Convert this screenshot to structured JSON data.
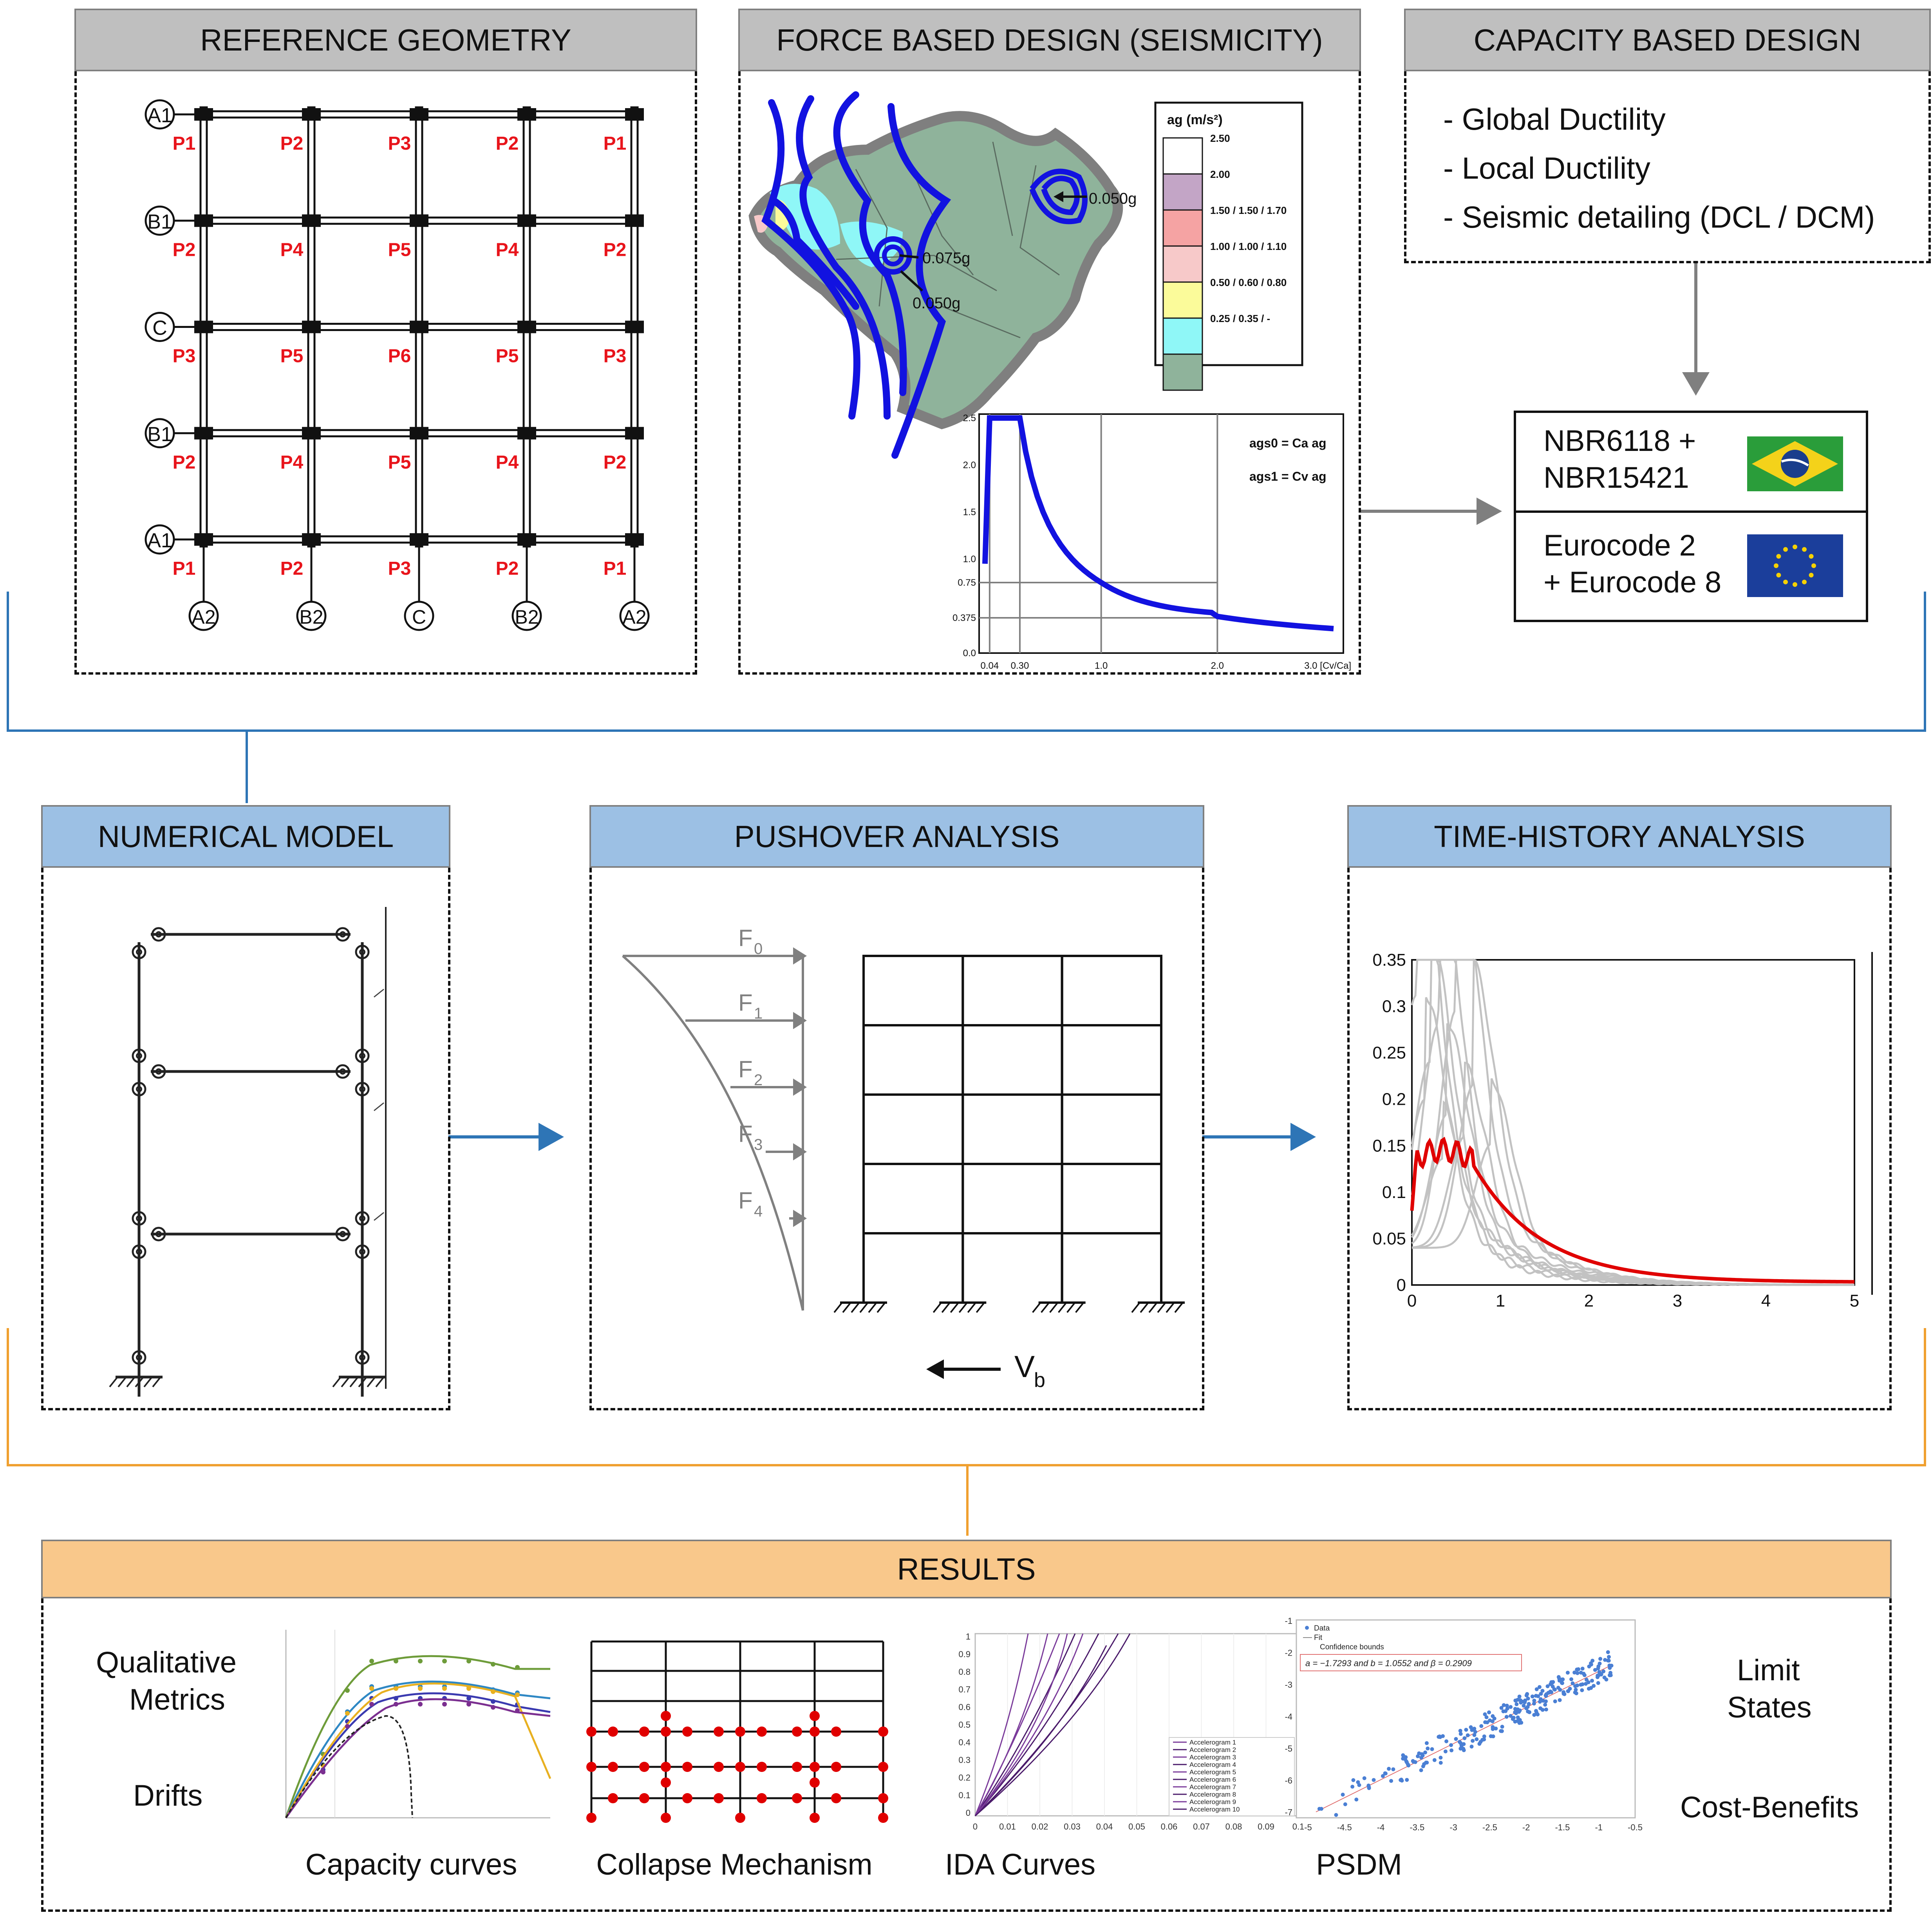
{
  "panels": {
    "reference_geometry": "REFERENCE GEOMETRY",
    "force_based": "FORCE BASED DESIGN (SEISMICITY)",
    "capacity_based": "CAPACITY BASED DESIGN",
    "numerical_model": "NUMERICAL MODEL",
    "pushover": "PUSHOVER ANALYSIS",
    "time_history": "TIME-HISTORY ANALYSIS",
    "results": "RESULTS"
  },
  "geometry": {
    "row_labels": [
      "A1",
      "B1",
      "C",
      "B1",
      "A1"
    ],
    "col_labels": [
      "A2",
      "B2",
      "C",
      "B2",
      "A2"
    ],
    "pillars": [
      [
        "P1",
        "P2",
        "P3",
        "P2",
        "P1"
      ],
      [
        "P2",
        "P4",
        "P5",
        "P4",
        "P2"
      ],
      [
        "P3",
        "P5",
        "P6",
        "P5",
        "P3"
      ],
      [
        "P2",
        "P4",
        "P5",
        "P4",
        "P2"
      ],
      [
        "P1",
        "P2",
        "P3",
        "P2",
        "P1"
      ]
    ]
  },
  "seismicity": {
    "legend_title": "ag (m/s²)",
    "legend_items": [
      {
        "label": "2.50",
        "color": "#ffffff"
      },
      {
        "label": "2.00",
        "color": "#c3a5c6"
      },
      {
        "label": "1.50 / 1.50 / 1.70",
        "color": "#f5a3a3"
      },
      {
        "label": "1.00 / 1.00 / 1.10",
        "color": "#f7c9c9"
      },
      {
        "label": "0.50 / 0.60 / 0.80",
        "color": "#fbfb9a"
      },
      {
        "label": "0.25 / 0.35 /  -",
        "color": "#8ff7f7"
      },
      {
        "label": "",
        "color": "#8fb39b"
      }
    ],
    "map_labels": [
      "0.050g",
      "0.075g",
      "0.050g"
    ],
    "spectrum": {
      "eq1": "ags0 = Ca ag",
      "eq2": "ags1 = Cv ag",
      "y_ticks": [
        "2.5",
        "2.0",
        "1.5",
        "1.0",
        "0.75",
        "0.375",
        "0.0"
      ],
      "x_ticks": [
        "0.04",
        "0.30",
        "1.0",
        "2.0",
        "3.0 [Cv/Ca]"
      ]
    }
  },
  "capacity_design": {
    "items": [
      "Global Ductility",
      "Local Ductility",
      "Seismic detailing (DCL / DCM)"
    ]
  },
  "codes": {
    "brazil": [
      "NBR6118 +",
      "NBR15421"
    ],
    "europe": [
      "Eurocode 2",
      "+ Eurocode 8"
    ]
  },
  "pushover": {
    "forces": [
      "F0",
      "F1",
      "F2",
      "F3",
      "F4"
    ],
    "base_shear": "Vb"
  },
  "time_history": {
    "y_ticks": [
      "0.35",
      "0.3",
      "0.25",
      "0.2",
      "0.15",
      "0.1",
      "0.05",
      "0"
    ],
    "x_ticks": [
      "0",
      "1",
      "2",
      "3",
      "4",
      "5"
    ]
  },
  "results": {
    "left_labels": [
      "Qualitative",
      "Metrics",
      "Drifts"
    ],
    "right_labels": [
      "Limit",
      "States",
      "Cost-Benefits"
    ],
    "captions": [
      "Capacity curves",
      "Collapse Mechanism",
      "IDA Curves",
      "PSDM"
    ],
    "ida_legend": [
      "Accelerogram 1",
      "Accelerogram 2",
      "Accelerogram 3",
      "Accelerogram 4",
      "Accelerogram 5",
      "Accelerogram 6",
      "Accelerogram 7",
      "Accelerogram 8",
      "Accelerogram 9",
      "Accelerogram 10"
    ],
    "ida_y_ticks": [
      "1",
      "0.9",
      "0.8",
      "0.7",
      "0.6",
      "0.5",
      "0.4",
      "0.3",
      "0.2",
      "0.1",
      "0"
    ],
    "ida_x_ticks": [
      "0",
      "0.01",
      "0.02",
      "0.03",
      "0.04",
      "0.05",
      "0.06",
      "0.07",
      "0.08",
      "0.09",
      "0.1"
    ],
    "psdm_legend": [
      "Data",
      "Fit",
      "Confidence bounds"
    ],
    "psdm_eq": "a = −1.7293 and b = 1.0552 and β = 0.2909",
    "psdm_y_ticks": [
      "-1",
      "-2",
      "-3",
      "-4",
      "-5",
      "-6",
      "-7"
    ],
    "psdm_x_ticks": [
      "-5",
      "-4.5",
      "-4",
      "-3.5",
      "-3",
      "-2.5",
      "-2",
      "-1.5",
      "-1",
      "-0.5"
    ]
  }
}
